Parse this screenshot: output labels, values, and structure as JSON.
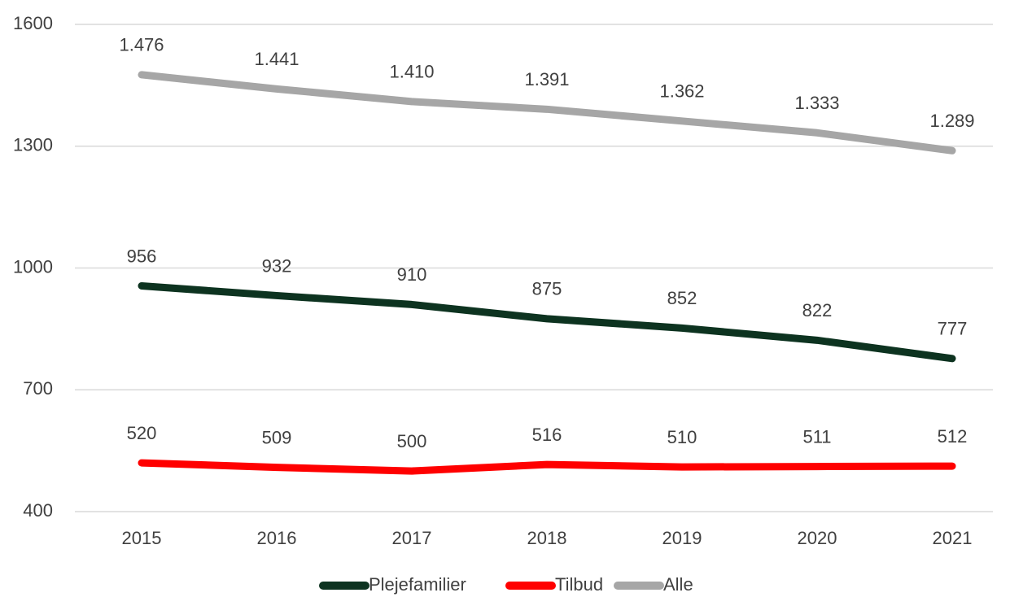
{
  "chart_data": {
    "type": "line",
    "categories": [
      "2015",
      "2016",
      "2017",
      "2018",
      "2019",
      "2020",
      "2021"
    ],
    "series": [
      {
        "name": "Plejefamilier",
        "color": "#0d3320",
        "values": [
          956,
          932,
          910,
          875,
          852,
          822,
          777
        ]
      },
      {
        "name": "Tilbud",
        "color": "#ff0000",
        "values": [
          520,
          509,
          500,
          516,
          510,
          511,
          512
        ]
      },
      {
        "name": "Alle",
        "color": "#a6a6a6",
        "values": [
          1476,
          1441,
          1410,
          1391,
          1362,
          1333,
          1289
        ],
        "value_labels": [
          "1.476",
          "1.441",
          "1.410",
          "1.391",
          "1.362",
          "1.333",
          "1.289"
        ]
      }
    ],
    "ylim": [
      400,
      1600
    ],
    "yticks": [
      400,
      700,
      1000,
      1300,
      1600
    ],
    "grid": true,
    "legend": "bottom"
  }
}
